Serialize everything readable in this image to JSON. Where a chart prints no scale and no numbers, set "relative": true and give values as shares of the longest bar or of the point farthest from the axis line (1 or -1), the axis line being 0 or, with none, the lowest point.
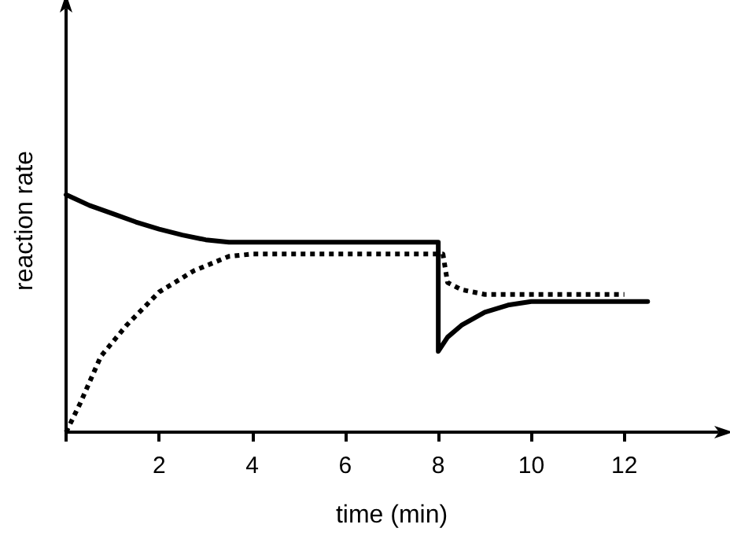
{
  "chart_data": {
    "type": "line",
    "xlabel": "time (min)",
    "ylabel": "reaction rate",
    "relative": true,
    "xlim": [
      0,
      14
    ],
    "xticks": [
      {
        "value": 0,
        "label": null
      },
      2,
      4,
      6,
      8,
      10,
      12
    ],
    "grid": false,
    "marker": "none",
    "series": [
      {
        "color": "#000000",
        "line_style": "solid",
        "x": [
          0,
          0.5,
          1,
          1.5,
          2,
          2.5,
          3,
          3.5,
          8,
          8,
          8.2,
          8.5,
          9,
          9.5,
          10,
          12.5
        ],
        "values": [
          1,
          0.955,
          0.92,
          0.885,
          0.855,
          0.83,
          0.81,
          0.8,
          0.8,
          0.34,
          0.4,
          0.45,
          0.505,
          0.535,
          0.55,
          0.55
        ]
      },
      {
        "color": "#000000",
        "line_style": "dotted",
        "x": [
          0,
          0.3,
          0.75,
          1.3,
          2,
          2.75,
          3.5,
          4,
          8.1,
          8.2,
          8.5,
          9,
          9.5,
          12
        ],
        "values": [
          0,
          0.12,
          0.32,
          0.45,
          0.59,
          0.68,
          0.74,
          0.75,
          0.75,
          0.63,
          0.6,
          0.58,
          0.58,
          0.58
        ]
      }
    ]
  }
}
